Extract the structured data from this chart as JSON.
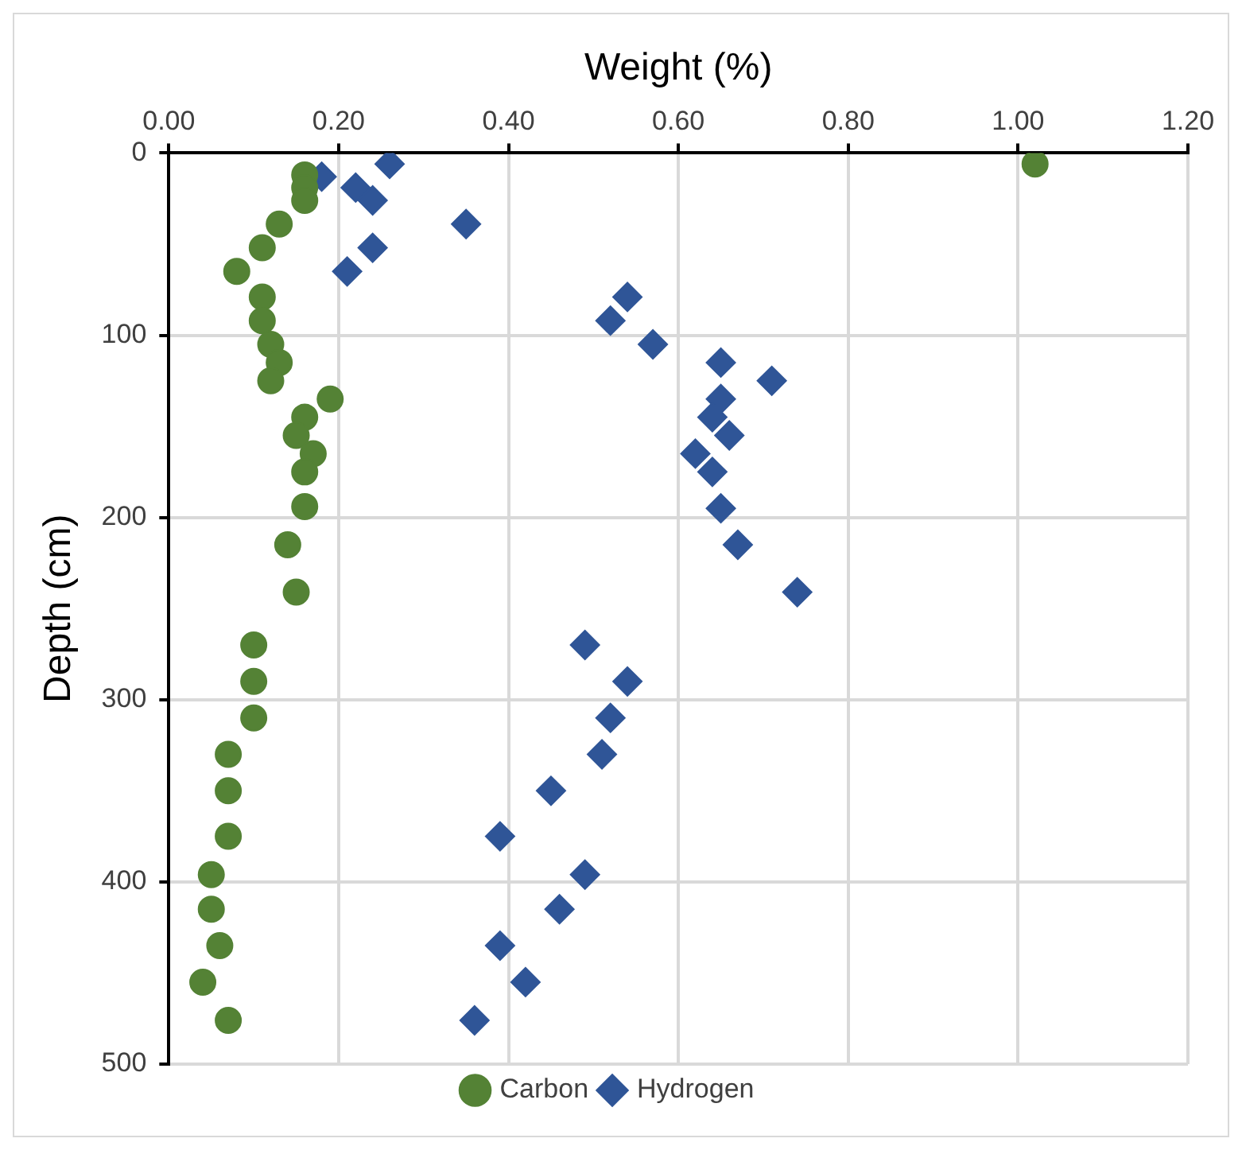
{
  "chart_data": {
    "type": "scatter",
    "xlabel": "Weight (%)",
    "ylabel": "Depth (cm)",
    "xlim": [
      0,
      1.2
    ],
    "xticks": [
      {
        "value": 0,
        "label": "0.00"
      },
      {
        "value": 0.2,
        "label": "0.20"
      },
      {
        "value": 0.4,
        "label": "0.40"
      },
      {
        "value": 0.6,
        "label": "0.60"
      },
      {
        "value": 0.8,
        "label": "0.80"
      },
      {
        "value": 1.0,
        "label": "1.00"
      },
      {
        "value": 1.2,
        "label": "1.20"
      }
    ],
    "ylim": [
      500,
      0
    ],
    "yticks": [
      0,
      100,
      200,
      300,
      400,
      500
    ],
    "grid": true,
    "legend": "bottom",
    "series": [
      {
        "name": "Carbon",
        "color": "#548235",
        "marker": "circle",
        "x": [
          1.02,
          0.16,
          0.16,
          0.16,
          0.13,
          0.11,
          0.08,
          0.11,
          0.11,
          0.12,
          0.13,
          0.12,
          0.19,
          0.16,
          0.15,
          0.17,
          0.16,
          0.16,
          0.14,
          0.15,
          0.1,
          0.1,
          0.1,
          0.07,
          0.07,
          0.07,
          0.05,
          0.05,
          0.06,
          0.04,
          0.07
        ],
        "values": [
          6,
          12,
          19,
          26,
          39,
          52,
          65,
          79,
          92,
          105,
          115,
          125,
          135,
          145,
          155,
          165,
          175,
          194,
          215,
          241,
          270,
          290,
          310,
          330,
          350,
          375,
          396,
          415,
          435,
          455,
          476
        ]
      },
      {
        "name": "Hydrogen",
        "color": "#2f5597",
        "marker": "diamond",
        "x": [
          0.26,
          0.18,
          0.22,
          0.24,
          0.35,
          0.24,
          0.21,
          0.54,
          0.52,
          0.57,
          0.65,
          0.71,
          0.65,
          0.64,
          0.66,
          0.62,
          0.64,
          0.65,
          0.67,
          0.74,
          0.49,
          0.54,
          0.52,
          0.51,
          0.45,
          0.39,
          0.49,
          0.46,
          0.39,
          0.42,
          0.36
        ],
        "values": [
          6,
          13,
          19,
          26,
          39,
          52,
          65,
          79,
          92,
          105,
          115,
          125,
          135,
          145,
          155,
          165,
          175,
          195,
          215,
          241,
          270,
          290,
          310,
          330,
          350,
          375,
          396,
          415,
          435,
          455,
          476
        ]
      }
    ]
  }
}
